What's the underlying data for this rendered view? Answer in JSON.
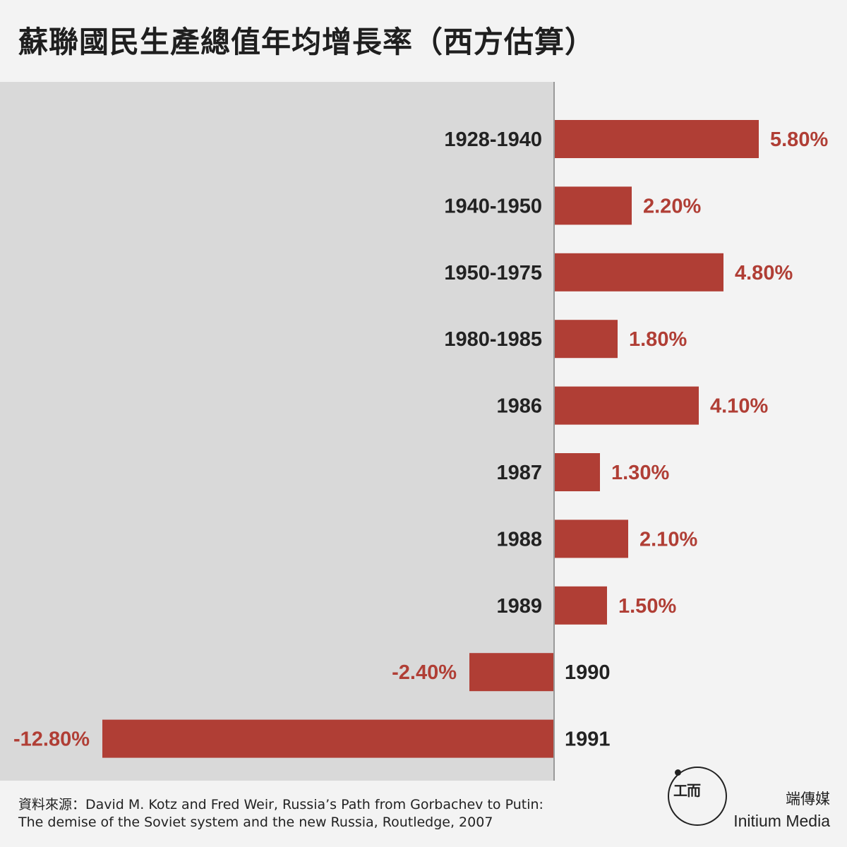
{
  "title": "蘇聯國民生產總值年均增長率（西方估算）",
  "source": {
    "line1": "資料來源：David M. Kotz and Fred Weir, Russia’s Path from Gorbachev to Putin:",
    "line2": "The demise of the Soviet system and the new Russia, Routledge, 2007"
  },
  "brand": {
    "name_zh": "端傳媒",
    "name_en": "Initium Media",
    "logo_icon": "initium-logo-icon"
  },
  "colors": {
    "bar": "#b03e35",
    "value_text": "#b03e35",
    "category_text": "#222222",
    "negative_region": "#d9d9d9",
    "axis": "#999999"
  },
  "chart_data": {
    "type": "bar",
    "orientation": "horizontal",
    "categories": [
      "1928-1940",
      "1940-1950",
      "1950-1975",
      "1980-1985",
      "1986",
      "1987",
      "1988",
      "1989",
      "1990",
      "1991"
    ],
    "values": [
      5.8,
      2.2,
      4.8,
      1.8,
      4.1,
      1.3,
      2.1,
      1.5,
      -2.4,
      -12.8
    ],
    "value_labels": [
      "5.80%",
      "2.20%",
      "4.80%",
      "1.80%",
      "4.10%",
      "1.30%",
      "2.10%",
      "1.50%",
      "-2.40%",
      "-12.80%"
    ],
    "title": "蘇聯國民生產總值年均增長率（西方估算）",
    "xlabel": "",
    "ylabel": "",
    "xlim": [
      -12.8,
      8.0
    ],
    "grid": false,
    "legend": "none"
  }
}
